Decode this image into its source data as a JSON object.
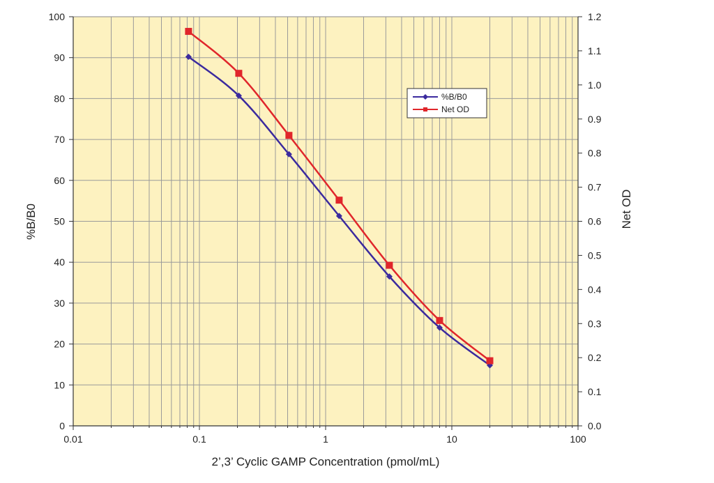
{
  "chart_data": {
    "type": "line",
    "title": "",
    "xlabel": "2’,3’ Cyclic GAMP Concentration (pmol/mL)",
    "ylabel": "%B/B0",
    "y2label": "Net OD",
    "x_scale": "log",
    "xlim": [
      0.01,
      100
    ],
    "ylim": [
      0,
      100
    ],
    "y2lim": [
      0,
      1.2
    ],
    "grid": true,
    "legend_position": "upper-right-inside",
    "plot_background": "#FDF2C0",
    "x_ticks": [
      {
        "value": 0.01,
        "label": "0.01"
      },
      {
        "value": 0.1,
        "label": "0.1"
      },
      {
        "value": 1,
        "label": "1"
      },
      {
        "value": 10,
        "label": "10"
      },
      {
        "value": 100,
        "label": "100"
      }
    ],
    "y_ticks": [
      {
        "value": 0,
        "label": "0"
      },
      {
        "value": 10,
        "label": "10"
      },
      {
        "value": 20,
        "label": "20"
      },
      {
        "value": 30,
        "label": "30"
      },
      {
        "value": 40,
        "label": "40"
      },
      {
        "value": 50,
        "label": "50"
      },
      {
        "value": 60,
        "label": "60"
      },
      {
        "value": 70,
        "label": "70"
      },
      {
        "value": 80,
        "label": "80"
      },
      {
        "value": 90,
        "label": "90"
      },
      {
        "value": 100,
        "label": "100"
      }
    ],
    "y2_ticks": [
      {
        "value": 0,
        "label": "0.0"
      },
      {
        "value": 0.1,
        "label": "0.1"
      },
      {
        "value": 0.2,
        "label": "0.2"
      },
      {
        "value": 0.3,
        "label": "0.3"
      },
      {
        "value": 0.4,
        "label": "0.4"
      },
      {
        "value": 0.5,
        "label": "0.5"
      },
      {
        "value": 0.6,
        "label": "0.6"
      },
      {
        "value": 0.7,
        "label": "0.7"
      },
      {
        "value": 0.8,
        "label": "0.8"
      },
      {
        "value": 0.9,
        "label": "0.9"
      },
      {
        "value": 1.0,
        "label": "1.0"
      },
      {
        "value": 1.1,
        "label": "1.1"
      },
      {
        "value": 1.2,
        "label": "1.2"
      }
    ],
    "series": [
      {
        "name": "%B/B0",
        "axis": "left",
        "color": "#3B2A9E",
        "marker": "diamond",
        "x": [
          0.082,
          0.205,
          0.512,
          1.28,
          3.2,
          8.0,
          20.0
        ],
        "y": [
          90.2,
          80.7,
          66.4,
          51.3,
          36.5,
          24.0,
          14.8
        ]
      },
      {
        "name": "Net OD",
        "axis": "right",
        "color": "#E0262B",
        "marker": "square",
        "x": [
          0.082,
          0.205,
          0.512,
          1.28,
          3.2,
          8.0,
          20.0
        ],
        "y": [
          1.157,
          1.034,
          0.852,
          0.662,
          0.471,
          0.309,
          0.191
        ]
      }
    ]
  }
}
